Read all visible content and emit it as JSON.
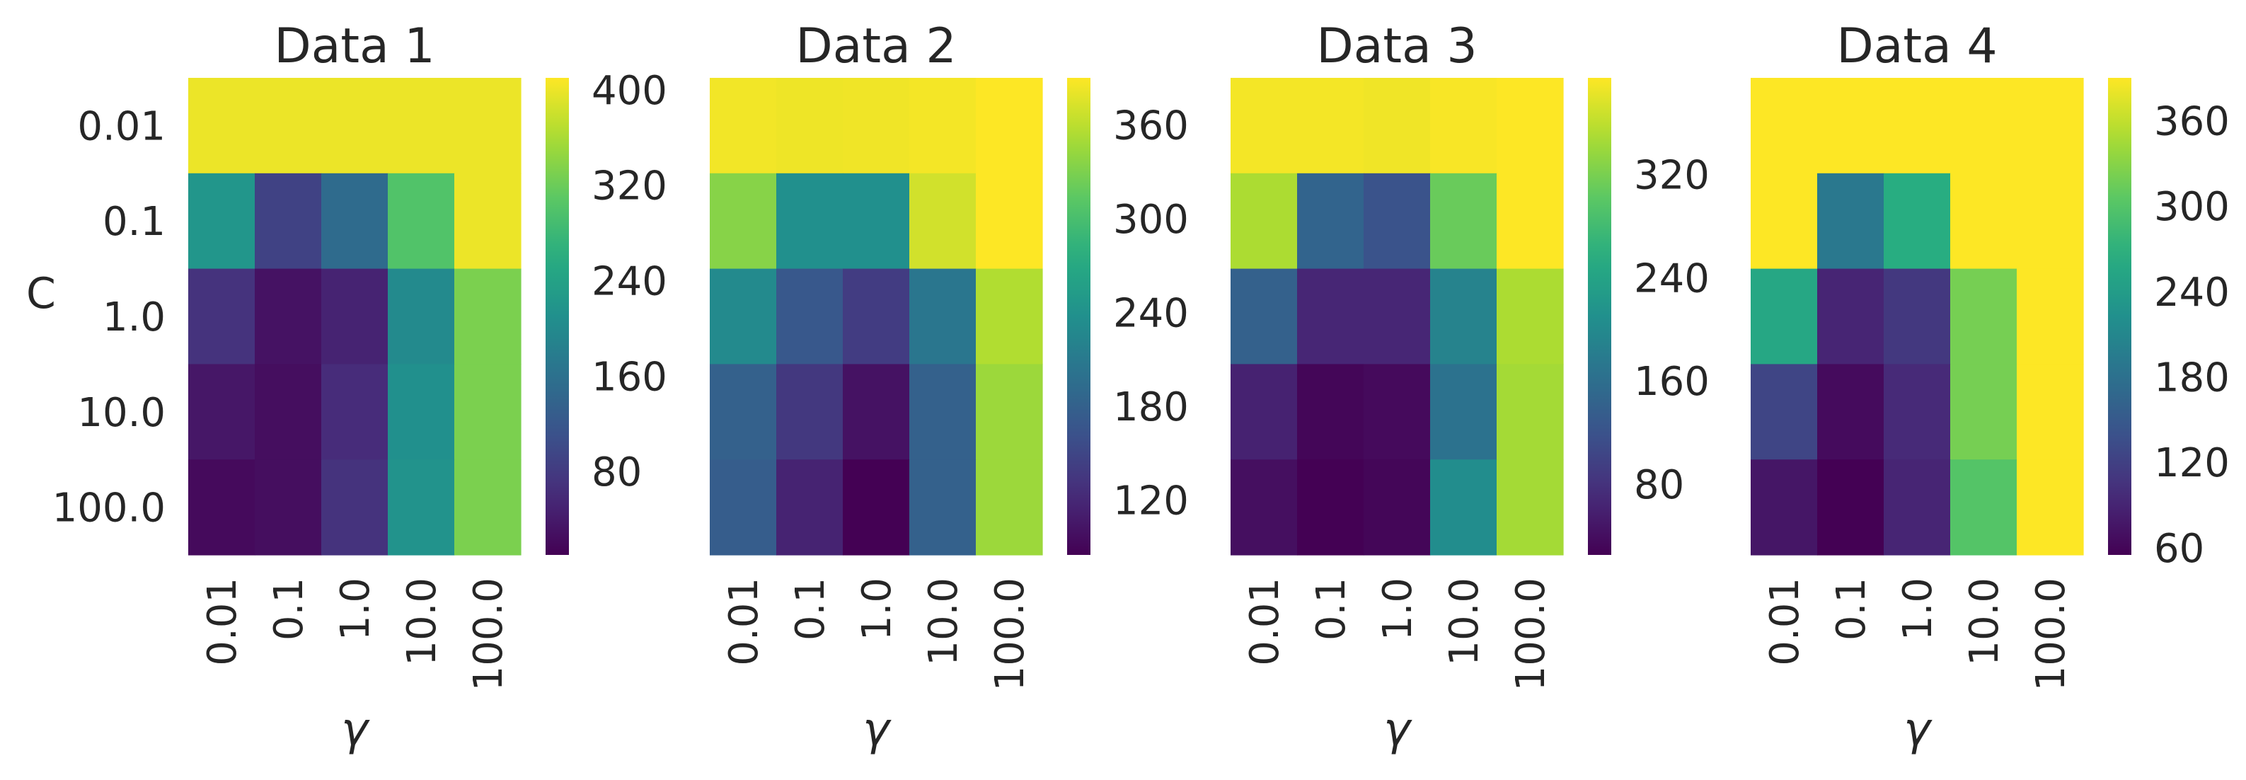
{
  "colormap": "viridis",
  "chart_data": [
    {
      "type": "heatmap",
      "title": "Data 1",
      "xlabel": "γ",
      "ylabel": "C",
      "x": [
        "0.01",
        "0.1",
        "1.0",
        "10.0",
        "100.0"
      ],
      "y": [
        "0.01",
        "0.1",
        "1.0",
        "10.0",
        "100.0"
      ],
      "values": [
        [
          400,
          400,
          400,
          400,
          400
        ],
        [
          220,
          90,
          150,
          300,
          400
        ],
        [
          70,
          30,
          50,
          200,
          330
        ],
        [
          35,
          25,
          60,
          210,
          330
        ],
        [
          20,
          25,
          70,
          215,
          330
        ]
      ],
      "vmin": 10,
      "vmax": 410,
      "colorbar_ticks": [
        80,
        160,
        240,
        320,
        400
      ]
    },
    {
      "type": "heatmap",
      "title": "Data 2",
      "xlabel": "γ",
      "ylabel": "",
      "x": [
        "0.01",
        "0.1",
        "1.0",
        "10.0",
        "100.0"
      ],
      "y": [
        "0.01",
        "0.1",
        "1.0",
        "10.0",
        "100.0"
      ],
      "values": [
        [
          385,
          383,
          384,
          386,
          390
        ],
        [
          335,
          238,
          238,
          370,
          390
        ],
        [
          230,
          170,
          140,
          205,
          355
        ],
        [
          180,
          135,
          100,
          180,
          345
        ],
        [
          175,
          115,
          85,
          180,
          345
        ]
      ],
      "vmin": 85,
      "vmax": 390,
      "colorbar_ticks": [
        120,
        180,
        240,
        300,
        360
      ]
    },
    {
      "type": "heatmap",
      "title": "Data 3",
      "xlabel": "γ",
      "ylabel": "",
      "x": [
        "0.01",
        "0.1",
        "1.0",
        "10.0",
        "100.0"
      ],
      "y": [
        "0.01",
        "0.1",
        "1.0",
        "10.0",
        "100.0"
      ],
      "values": [
        [
          390,
          390,
          388,
          392,
          395
        ],
        [
          350,
          145,
          120,
          310,
          395
        ],
        [
          140,
          65,
          65,
          190,
          350
        ],
        [
          60,
          30,
          35,
          165,
          345
        ],
        [
          40,
          25,
          30,
          205,
          345
        ]
      ],
      "vmin": 25,
      "vmax": 395,
      "colorbar_ticks": [
        80,
        160,
        240,
        320
      ]
    },
    {
      "type": "heatmap",
      "title": "Data 4",
      "xlabel": "γ",
      "ylabel": "",
      "x": [
        "0.01",
        "0.1",
        "1.0",
        "10.0",
        "100.0"
      ],
      "y": [
        "0.01",
        "0.1",
        "1.0",
        "10.0",
        "100.0"
      ],
      "values": [
        [
          390,
          390,
          390,
          390,
          390
        ],
        [
          390,
          190,
          265,
          390,
          390
        ],
        [
          255,
          90,
          110,
          320,
          390
        ],
        [
          125,
          65,
          95,
          320,
          390
        ],
        [
          75,
          55,
          90,
          300,
          390
        ]
      ],
      "vmin": 55,
      "vmax": 390,
      "colorbar_ticks": [
        60,
        120,
        180,
        240,
        300,
        360
      ]
    }
  ]
}
